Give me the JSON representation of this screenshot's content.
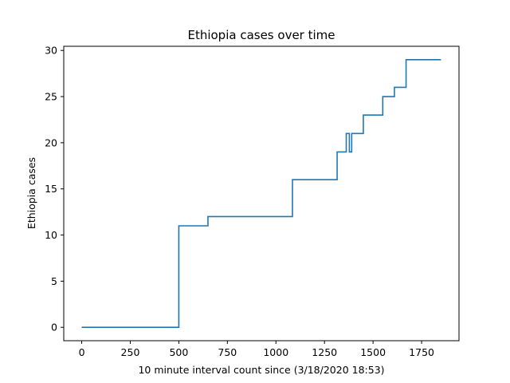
{
  "chart_data": {
    "type": "line",
    "title": "Ethiopia cases over time",
    "xlabel": "10 minute interval count since (3/18/2020 18:53)",
    "ylabel": "Ethiopia cases",
    "xlim": [
      -92.5,
      1942.5
    ],
    "ylim": [
      -1.45,
      30.45
    ],
    "x_ticks": [
      0,
      250,
      500,
      750,
      1000,
      1250,
      1500,
      1750
    ],
    "y_ticks": [
      0,
      5,
      10,
      15,
      20,
      25,
      30
    ],
    "grid": false,
    "legend": "none",
    "series": [
      {
        "color": "#1f77b4",
        "step": "post",
        "points": [
          [
            0,
            0
          ],
          [
            500,
            11
          ],
          [
            650,
            12
          ],
          [
            1085,
            16
          ],
          [
            1315,
            19
          ],
          [
            1362,
            21
          ],
          [
            1378,
            19
          ],
          [
            1390,
            21
          ],
          [
            1450,
            23
          ],
          [
            1550,
            25
          ],
          [
            1610,
            26
          ],
          [
            1670,
            29
          ],
          [
            1850,
            29
          ]
        ]
      }
    ]
  }
}
